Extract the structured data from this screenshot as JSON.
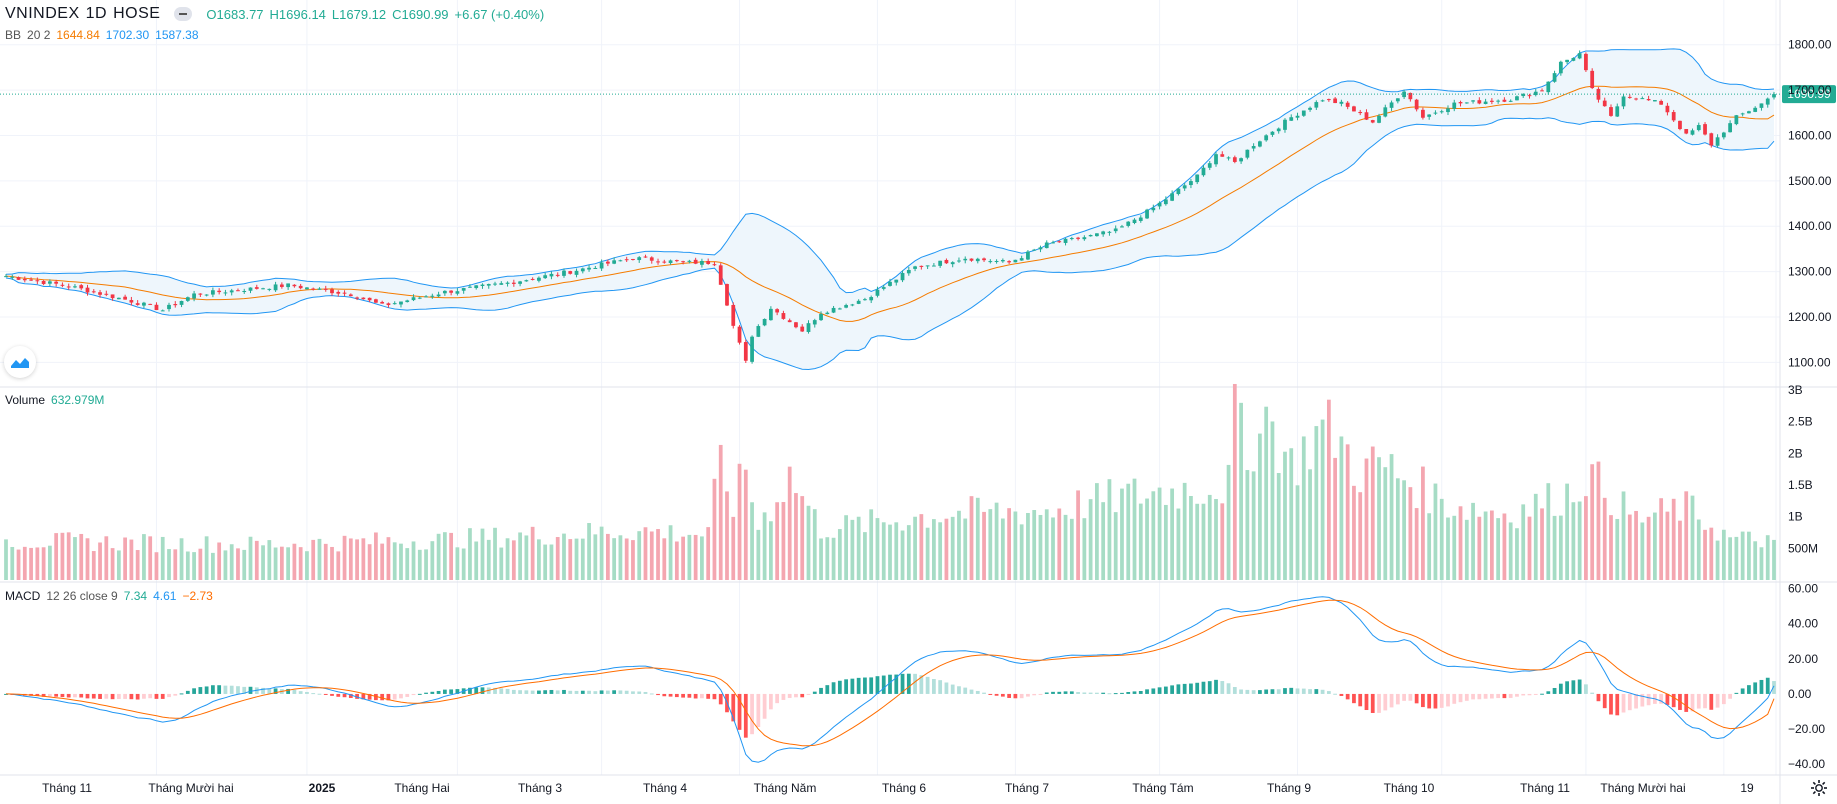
{
  "header": {
    "symbol": "VNINDEX",
    "interval": "1D",
    "exchange": "HOSE",
    "open": "O1683.77",
    "high": "H1696.14",
    "low": "L1679.12",
    "close": "C1690.99",
    "change": "+6.67 (+0.40%)"
  },
  "bb_legend": {
    "label": "BB",
    "params": "20 2",
    "basis": "1644.84",
    "upper": "1702.30",
    "lower": "1587.38"
  },
  "volume_legend": {
    "label": "Volume",
    "value": "632.979M"
  },
  "macd_legend": {
    "label": "MACD",
    "params": "12 26 close 9",
    "hist": "7.34",
    "macd": "4.61",
    "signal": "−2.73"
  },
  "last_price_label": "1690.99",
  "colors": {
    "up": "#22ab94",
    "down": "#f23645",
    "vol_up": "#a6dcc5",
    "vol_down": "#f4a6b0",
    "bb": "#2196f3",
    "basis": "#f57c00",
    "fill": "#eef6fc"
  },
  "chart_data": [
    {
      "type": "candlestick",
      "title": "VNINDEX 1D HOSE",
      "y_axis_ticks": [
        "1800.00",
        "1700.00",
        "1600.00",
        "1500.00",
        "1400.00",
        "1300.00",
        "1200.00",
        "1100.00"
      ],
      "ylim": [
        1050,
        1850
      ],
      "x_axis_ticks": [
        "Tháng 11",
        "Tháng Mười hai",
        "2025",
        "Tháng Hai",
        "Tháng 3",
        "Tháng 4",
        "Tháng Năm",
        "Tháng 6",
        "Tháng 7",
        "Tháng Tám",
        "Tháng 9",
        "Tháng 10",
        "Tháng 11",
        "Tháng Mười hai",
        "19"
      ],
      "close_anchors": [
        [
          0,
          1290
        ],
        [
          10,
          1268
        ],
        [
          20,
          1235
        ],
        [
          25,
          1215
        ],
        [
          30,
          1250
        ],
        [
          45,
          1270
        ],
        [
          55,
          1250
        ],
        [
          60,
          1225
        ],
        [
          70,
          1255
        ],
        [
          80,
          1275
        ],
        [
          90,
          1300
        ],
        [
          100,
          1330
        ],
        [
          108,
          1320
        ],
        [
          113,
          1320
        ],
        [
          115,
          1230
        ],
        [
          116,
          1180
        ],
        [
          118,
          1100
        ],
        [
          119,
          1160
        ],
        [
          122,
          1220
        ],
        [
          127,
          1170
        ],
        [
          130,
          1210
        ],
        [
          137,
          1240
        ],
        [
          145,
          1310
        ],
        [
          153,
          1330
        ],
        [
          160,
          1320
        ],
        [
          166,
          1360
        ],
        [
          170,
          1370
        ],
        [
          177,
          1390
        ],
        [
          183,
          1440
        ],
        [
          190,
          1510
        ],
        [
          193,
          1560
        ],
        [
          196,
          1540
        ],
        [
          199,
          1580
        ],
        [
          205,
          1640
        ],
        [
          210,
          1680
        ],
        [
          213,
          1670
        ],
        [
          218,
          1630
        ],
        [
          223,
          1700
        ],
        [
          226,
          1640
        ],
        [
          231,
          1670
        ],
        [
          240,
          1680
        ],
        [
          245,
          1700
        ],
        [
          248,
          1760
        ],
        [
          251,
          1780
        ],
        [
          253,
          1700
        ],
        [
          256,
          1640
        ],
        [
          258,
          1690
        ],
        [
          264,
          1670
        ],
        [
          268,
          1600
        ],
        [
          270,
          1620
        ],
        [
          272,
          1580
        ],
        [
          276,
          1640
        ],
        [
          280,
          1670
        ],
        [
          282,
          1690.99
        ]
      ],
      "bollinger": {
        "period": 20,
        "mult": 2,
        "last_basis": 1644.84,
        "last_upper": 1702.3,
        "last_lower": 1587.38
      },
      "last_close": 1690.99
    },
    {
      "type": "bar",
      "title": "Volume",
      "y_axis_ticks": [
        "3B",
        "2.5B",
        "2B",
        "1.5B",
        "1B",
        "500M"
      ],
      "ylim": [
        0,
        3000000000
      ],
      "values_millions_anchors": [
        [
          0,
          620
        ],
        [
          40,
          560
        ],
        [
          70,
          640
        ],
        [
          100,
          780
        ],
        [
          112,
          720
        ],
        [
          114,
          1850
        ],
        [
          115,
          1500
        ],
        [
          116,
          1200
        ],
        [
          118,
          1750
        ],
        [
          120,
          850
        ],
        [
          125,
          1650
        ],
        [
          130,
          800
        ],
        [
          150,
          1050
        ],
        [
          166,
          1100
        ],
        [
          180,
          1350
        ],
        [
          195,
          1500
        ],
        [
          196,
          2800
        ],
        [
          198,
          1700
        ],
        [
          200,
          2800
        ],
        [
          205,
          1800
        ],
        [
          210,
          2400
        ],
        [
          212,
          2300
        ],
        [
          216,
          1700
        ],
        [
          219,
          1850
        ],
        [
          230,
          1200
        ],
        [
          240,
          1050
        ],
        [
          250,
          1400
        ],
        [
          252,
          1700
        ],
        [
          260,
          950
        ],
        [
          268,
          1150
        ],
        [
          275,
          650
        ],
        [
          282,
          632.979
        ]
      ]
    },
    {
      "type": "line",
      "title": "MACD",
      "params": "12 26 close 9",
      "y_axis_ticks": [
        "60.00",
        "40.00",
        "20.00",
        "0.00",
        "−20.00",
        "−40.00"
      ],
      "ylim": [
        -45,
        62
      ],
      "series": [
        {
          "name": "MACD",
          "color": "#2196f3"
        },
        {
          "name": "Signal",
          "color": "#ff6d00"
        },
        {
          "name": "Histogram",
          "color": "#26a69a"
        }
      ],
      "last": {
        "hist": 7.34,
        "macd": 4.61,
        "signal": -2.73
      }
    }
  ]
}
